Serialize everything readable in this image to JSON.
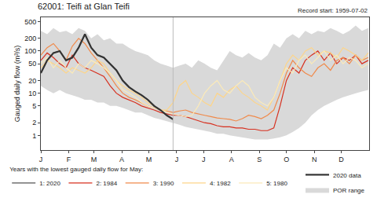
{
  "chart_data": {
    "type": "line",
    "title": "62001: Teifi at Glan Teifi",
    "subtitle": "Record start: 1959-07-02",
    "y_label": "Gauged daily flow (m³/s)",
    "legend_title": "Years with the lowest gauged daily flow for May:",
    "log": "y",
    "grid": false,
    "legend": "bottom",
    "x": [
      1,
      8,
      15,
      22,
      29,
      36,
      43,
      50,
      57,
      64,
      71,
      78,
      85,
      92,
      99,
      106,
      113,
      120,
      127,
      134,
      141,
      148,
      155,
      162,
      169,
      176,
      183,
      190,
      197,
      204,
      211,
      218,
      225,
      232,
      239,
      246,
      253,
      260,
      267,
      274,
      281,
      288,
      295,
      302,
      309,
      316,
      323,
      330,
      337,
      344,
      351,
      358,
      365
    ],
    "xlim": [
      1,
      366
    ],
    "xticks": [
      {
        "value": 1,
        "label": "J"
      },
      {
        "value": 32,
        "label": "F"
      },
      {
        "value": 60,
        "label": "M"
      },
      {
        "value": 91,
        "label": "A"
      },
      {
        "value": 121,
        "label": "M"
      },
      {
        "value": 152,
        "label": "J"
      },
      {
        "value": 182,
        "label": "J"
      },
      {
        "value": 213,
        "label": "A"
      },
      {
        "value": 244,
        "label": "S"
      },
      {
        "value": 274,
        "label": "O"
      },
      {
        "value": 305,
        "label": "N"
      },
      {
        "value": 335,
        "label": "D"
      }
    ],
    "ylim": [
      0.45,
      630
    ],
    "yticks": [
      1,
      2,
      5,
      10,
      20,
      50,
      100,
      200,
      500
    ],
    "reference_series": [
      {
        "name": "POR range",
        "type": "band",
        "color": "#d9d9d9",
        "upper": [
          300,
          250,
          350,
          280,
          300,
          250,
          350,
          300,
          200,
          250,
          180,
          200,
          150,
          150,
          120,
          100,
          90,
          80,
          60,
          50,
          45,
          40,
          45,
          50,
          40,
          60,
          50,
          40,
          35,
          60,
          100,
          80,
          70,
          90,
          70,
          60,
          80,
          150,
          120,
          200,
          250,
          200,
          300,
          250,
          300,
          280,
          350,
          300,
          250,
          300,
          400,
          300,
          350
        ],
        "lower": [
          15,
          12,
          10,
          12,
          10,
          9,
          8,
          7,
          7,
          6,
          6,
          5,
          5,
          4.5,
          4,
          3.5,
          3.5,
          3,
          2.6,
          2.4,
          2.2,
          2,
          1.8,
          1.6,
          1.5,
          1.4,
          1.3,
          1.2,
          1.1,
          1.1,
          1,
          0.95,
          0.9,
          0.85,
          0.8,
          0.8,
          0.8,
          0.85,
          0.9,
          1,
          1.2,
          1.5,
          2,
          3,
          4,
          5,
          6,
          7,
          8,
          9,
          10,
          11,
          12
        ]
      },
      {
        "name": "2020 data",
        "type": "line",
        "color": "#333333",
        "line_style": "thick",
        "values": [
          30,
          60,
          90,
          100,
          60,
          70,
          120,
          250,
          120,
          80,
          70,
          50,
          35,
          20,
          14,
          11,
          9,
          7,
          5,
          4,
          3,
          2.4,
          null,
          null,
          null,
          null,
          null,
          null,
          null,
          null,
          null,
          null,
          null,
          null,
          null,
          null,
          null,
          null,
          null,
          null,
          null,
          null,
          null,
          null,
          null,
          null,
          null,
          null,
          null,
          null,
          null,
          null,
          null
        ]
      }
    ],
    "series": [
      {
        "name": "1: 2020",
        "color": "#555555",
        "values": [
          30,
          60,
          90,
          100,
          60,
          70,
          120,
          250,
          120,
          80,
          70,
          50,
          35,
          20,
          14,
          11,
          9,
          7,
          5,
          4,
          3,
          2.4,
          null,
          null,
          null,
          null,
          null,
          null,
          null,
          null,
          null,
          null,
          null,
          null,
          null,
          null,
          null,
          null,
          null,
          null,
          null,
          null,
          null,
          null,
          null,
          null,
          null,
          null,
          null,
          null,
          null,
          null,
          null
        ]
      },
      {
        "name": "2: 1984",
        "color": "#d7301f",
        "values": [
          60,
          90,
          70,
          50,
          40,
          80,
          50,
          40,
          35,
          30,
          25,
          15,
          10,
          8,
          7,
          6,
          5,
          4.5,
          4,
          3.5,
          3.2,
          3,
          3,
          2.8,
          2.5,
          2.2,
          2,
          1.9,
          1.7,
          1.6,
          1.6,
          1.5,
          1.5,
          1.4,
          1.4,
          1.3,
          1.3,
          1.5,
          5,
          20,
          40,
          30,
          60,
          80,
          100,
          60,
          90,
          50,
          70,
          60,
          80,
          50,
          60
        ]
      },
      {
        "name": "3: 1990",
        "color": "#f08a4b",
        "values": [
          80,
          120,
          150,
          100,
          60,
          130,
          200,
          150,
          90,
          60,
          40,
          25,
          15,
          10,
          8,
          7,
          6,
          5,
          4.5,
          4,
          3.8,
          3.5,
          3.8,
          4,
          3.5,
          3.2,
          3,
          2.8,
          2.6,
          2.5,
          2.4,
          2.2,
          2.5,
          3,
          2.8,
          2.5,
          3,
          4,
          10,
          30,
          60,
          40,
          30,
          25,
          40,
          50,
          35,
          60,
          70,
          50,
          80,
          60,
          70
        ]
      },
      {
        "name": "4: 1982",
        "color": "#fdd58a",
        "values": [
          40,
          60,
          50,
          40,
          30,
          40,
          35,
          30,
          40,
          60,
          50,
          30,
          20,
          15,
          12,
          10,
          8,
          6,
          5,
          4,
          4,
          6,
          15,
          20,
          10,
          8,
          6,
          5,
          10,
          8,
          12,
          15,
          10,
          8,
          6,
          5,
          4,
          8,
          20,
          50,
          80,
          60,
          100,
          120,
          80,
          100,
          90,
          70,
          120,
          100,
          80,
          60,
          90
        ]
      },
      {
        "name": "5: 1980",
        "color": "#fbeab9",
        "values": [
          50,
          70,
          40,
          60,
          40,
          30,
          50,
          40,
          60,
          50,
          40,
          30,
          20,
          12,
          10,
          8,
          6,
          5,
          4.5,
          4,
          3.5,
          3.2,
          3,
          2.8,
          3,
          5,
          10,
          15,
          20,
          12,
          10,
          15,
          20,
          15,
          8,
          6,
          5,
          8,
          20,
          40,
          30,
          60,
          80,
          50,
          70,
          100,
          60,
          80,
          50,
          70,
          60,
          40,
          50
        ]
      }
    ]
  }
}
